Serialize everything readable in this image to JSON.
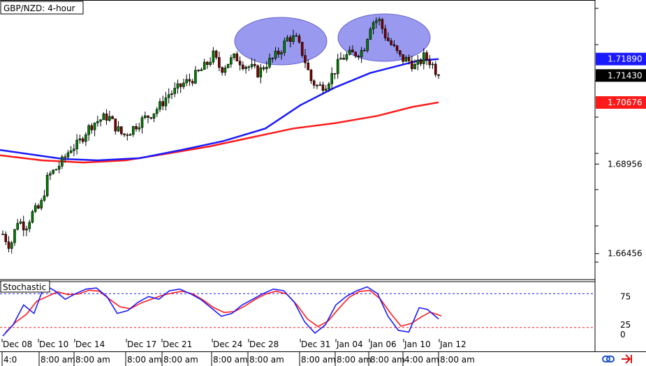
{
  "chart_data": {
    "type": "candlestick",
    "title": "GBP/NZD: 4-hour",
    "price_axis": {
      "range": [
        1.6575,
        1.735
      ],
      "tick_labels": [
        "1.68956",
        "1.66456"
      ],
      "price_tags": [
        {
          "value": 1.7189,
          "label": "1.71890",
          "color": "#1a1aff",
          "line": "sma_blue"
        },
        {
          "value": 1.7143,
          "label": "1.71430",
          "color": "#000000",
          "line": "price"
        },
        {
          "value": 1.70676,
          "label": "1.70676",
          "color": "#ff1a1a",
          "line": "sma_red"
        }
      ]
    },
    "x_axis": {
      "date_labels": [
        "Dec 08",
        "Dec 10",
        "Dec 14",
        "Dec 17",
        "Dec 21",
        "Dec 24",
        "Dec 28",
        "Dec 31",
        "Jan 04",
        "Jan 06",
        "Jan 10",
        "Jan 12"
      ],
      "time_labels": [
        "4:0",
        "8:00 am",
        "8:00 am",
        "8:00 am",
        "8:00 am",
        "8:00 am",
        "8:00 am",
        "8:00 am",
        "8:00 am",
        "8:00 am",
        "4:00 am",
        "8:00 am"
      ]
    },
    "close_path": [
      1.67,
      1.6665,
      1.674,
      1.672,
      1.676,
      1.6775,
      1.686,
      1.688,
      1.6905,
      1.694,
      1.695,
      1.6985,
      1.701,
      1.702,
      1.703,
      1.7,
      1.6975,
      1.699,
      1.701,
      1.7025,
      1.704,
      1.706,
      1.709,
      1.71,
      1.712,
      1.713,
      1.715,
      1.717,
      1.72,
      1.716,
      1.718,
      1.7195,
      1.7175,
      1.7165,
      1.715,
      1.7175,
      1.719,
      1.7215,
      1.725,
      1.7245,
      1.72,
      1.713,
      1.711,
      1.712,
      1.715,
      1.719,
      1.72,
      1.7205,
      1.7215,
      1.729,
      1.73,
      1.725,
      1.722,
      1.719,
      1.7185,
      1.7165,
      1.7195,
      1.718,
      1.7143
    ],
    "sma_blue": [
      [
        0,
        1.6935
      ],
      [
        90,
        1.691
      ],
      [
        140,
        1.6906
      ],
      [
        200,
        1.6912
      ],
      [
        260,
        1.6935
      ],
      [
        320,
        1.696
      ],
      [
        380,
        1.6995
      ],
      [
        430,
        1.706
      ],
      [
        480,
        1.711
      ],
      [
        530,
        1.715
      ],
      [
        570,
        1.717
      ],
      [
        600,
        1.7185
      ],
      [
        628,
        1.7189
      ]
    ],
    "sma_red": [
      [
        0,
        1.692
      ],
      [
        60,
        1.6906
      ],
      [
        120,
        1.69
      ],
      [
        180,
        1.6906
      ],
      [
        240,
        1.6925
      ],
      [
        300,
        1.6945
      ],
      [
        360,
        1.697
      ],
      [
        420,
        1.6995
      ],
      [
        480,
        1.701
      ],
      [
        540,
        1.703
      ],
      [
        590,
        1.7055
      ],
      [
        628,
        1.7068
      ]
    ],
    "highlights": [
      "left-peak",
      "right-peak"
    ],
    "stochastic": {
      "name": "Stochastic",
      "range": [
        0,
        100
      ],
      "tick_labels": [
        "75",
        "25",
        "0"
      ],
      "levels": [
        {
          "value": 80,
          "color": "#1a1aff"
        },
        {
          "value": 20,
          "color": "#ff1a1a"
        }
      ],
      "main": [
        [
          0,
          5
        ],
        [
          15,
          25
        ],
        [
          30,
          60
        ],
        [
          45,
          45
        ],
        [
          60,
          95
        ],
        [
          75,
          85
        ],
        [
          90,
          70
        ],
        [
          105,
          80
        ],
        [
          120,
          88
        ],
        [
          135,
          90
        ],
        [
          150,
          75
        ],
        [
          165,
          45
        ],
        [
          180,
          50
        ],
        [
          195,
          65
        ],
        [
          210,
          75
        ],
        [
          225,
          70
        ],
        [
          240,
          85
        ],
        [
          255,
          88
        ],
        [
          270,
          80
        ],
        [
          285,
          70
        ],
        [
          300,
          55
        ],
        [
          315,
          40
        ],
        [
          330,
          45
        ],
        [
          345,
          60
        ],
        [
          360,
          70
        ],
        [
          375,
          80
        ],
        [
          390,
          88
        ],
        [
          405,
          85
        ],
        [
          420,
          65
        ],
        [
          435,
          30
        ],
        [
          450,
          10
        ],
        [
          465,
          25
        ],
        [
          480,
          60
        ],
        [
          495,
          75
        ],
        [
          510,
          85
        ],
        [
          525,
          92
        ],
        [
          540,
          80
        ],
        [
          555,
          40
        ],
        [
          570,
          15
        ],
        [
          585,
          12
        ],
        [
          600,
          55
        ],
        [
          612,
          52
        ],
        [
          628,
          35
        ]
      ]
    },
    "grid": false,
    "colors": {
      "up_candle": "#008000",
      "down_candle": "#800000",
      "wick": "#000000",
      "sma_blue": "#1a1aff",
      "sma_red": "#ff1a1a",
      "highlight": "#9999f0"
    }
  },
  "toolbar": {
    "icons": [
      "link-icon",
      "arrow-icon"
    ]
  }
}
